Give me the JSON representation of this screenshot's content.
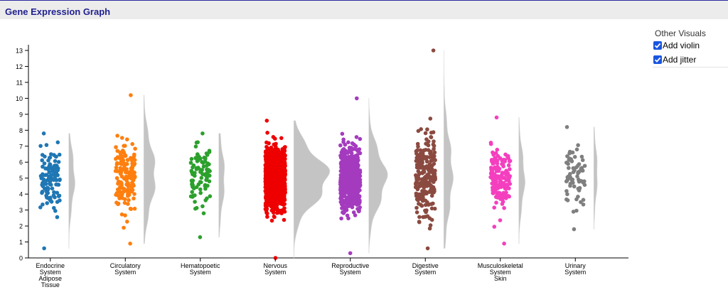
{
  "header": {
    "title": "Gene Expression Graph"
  },
  "options_panel": {
    "title": "Other Visuals",
    "options": [
      {
        "label": "Add violin",
        "checked": true
      },
      {
        "label": "Add jitter",
        "checked": true
      }
    ]
  },
  "chart_data": {
    "type": "scatter",
    "subtype": "jitter strip plot with half-violin density",
    "title": "",
    "xlabel": "",
    "ylabel": "",
    "ylim": [
      0,
      13
    ],
    "yticks": [
      0,
      1,
      2,
      3,
      4,
      5,
      6,
      7,
      8,
      9,
      10,
      11,
      12,
      13
    ],
    "grid": false,
    "series": [
      {
        "name": "Endocrine System Adipose Tissue",
        "label_lines": [
          "Endocrine",
          "System",
          "Adipose",
          "Tissue"
        ],
        "color": "#1f77b4",
        "n": 120,
        "min": 0.6,
        "max": 7.8,
        "center": 5.0,
        "spread": 1.6,
        "violin_width": 8
      },
      {
        "name": "Circulatory System",
        "label_lines": [
          "Circulatory",
          "System"
        ],
        "color": "#ff7f0e",
        "n": 160,
        "min": 0.9,
        "max": 10.2,
        "center": 5.2,
        "spread": 1.9,
        "violin_width": 16
      },
      {
        "name": "Hematopoetic System",
        "label_lines": [
          "Hematopoetic",
          "System"
        ],
        "color": "#2ca02c",
        "n": 90,
        "min": 1.3,
        "max": 7.8,
        "center": 5.0,
        "spread": 1.7,
        "violin_width": 8
      },
      {
        "name": "Nervous System",
        "label_lines": [
          "Nervous",
          "System"
        ],
        "color": "#ee0000",
        "n": 1100,
        "min": 0.0,
        "max": 8.6,
        "center": 5.0,
        "spread": 1.5,
        "violin_width": 48
      },
      {
        "name": "Reproductive System",
        "label_lines": [
          "Reproductive",
          "System"
        ],
        "color": "#a43bbe",
        "n": 520,
        "min": 0.3,
        "max": 10.0,
        "center": 5.0,
        "spread": 1.6,
        "violin_width": 24
      },
      {
        "name": "Digestive System",
        "label_lines": [
          "Digestive",
          "System"
        ],
        "color": "#8b4a40",
        "n": 230,
        "min": 0.6,
        "max": 13.0,
        "center": 5.2,
        "spread": 2.3,
        "violin_width": 12
      },
      {
        "name": "Musculoskeletal System Skin",
        "label_lines": [
          "Musculoskeletal",
          "System",
          "Skin"
        ],
        "color": "#f43fbf",
        "n": 160,
        "min": 0.9,
        "max": 8.8,
        "center": 5.0,
        "spread": 1.6,
        "violin_width": 8
      },
      {
        "name": "Urinary System",
        "label_lines": [
          "Urinary",
          "System"
        ],
        "color": "#7f7f7f",
        "n": 70,
        "min": 1.8,
        "max": 8.2,
        "center": 5.3,
        "spread": 1.5,
        "violin_width": 5
      }
    ]
  }
}
